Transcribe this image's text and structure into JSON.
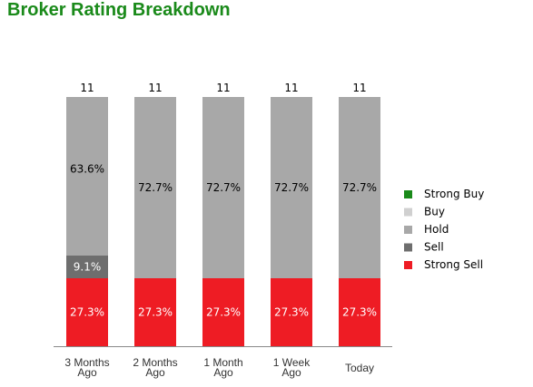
{
  "title": "Broker Rating Breakdown",
  "chart_data": {
    "type": "bar",
    "stacked": true,
    "categories": [
      [
        "3 Months",
        "Ago"
      ],
      [
        "2 Months",
        "Ago"
      ],
      [
        "1 Month",
        "Ago"
      ],
      [
        "1 Week",
        "Ago"
      ],
      [
        "Today"
      ]
    ],
    "totals": [
      11,
      11,
      11,
      11,
      11
    ],
    "series": [
      {
        "name": "Strong Buy",
        "color": "#1a8a1a",
        "values": [
          0,
          0,
          0,
          0,
          0
        ]
      },
      {
        "name": "Buy",
        "color": "#d0d0d0",
        "values": [
          0,
          0,
          0,
          0,
          0
        ]
      },
      {
        "name": "Hold",
        "color": "#a8a8a8",
        "values": [
          7,
          8,
          8,
          8,
          8
        ]
      },
      {
        "name": "Sell",
        "color": "#6e6e6e",
        "values": [
          1,
          0,
          0,
          0,
          0
        ]
      },
      {
        "name": "Strong Sell",
        "color": "#ee1c24",
        "values": [
          3,
          3,
          3,
          3,
          3
        ]
      }
    ],
    "data_labels": [
      {
        "Hold": "63.6%",
        "Sell": "9.1%",
        "Strong Sell": "27.3%"
      },
      {
        "Hold": "72.7%",
        "Strong Sell": "27.3%"
      },
      {
        "Hold": "72.7%",
        "Strong Sell": "27.3%"
      },
      {
        "Hold": "72.7%",
        "Strong Sell": "27.3%"
      },
      {
        "Hold": "72.7%",
        "Strong Sell": "27.3%"
      }
    ],
    "legend_placement": "right",
    "grid": false
  }
}
